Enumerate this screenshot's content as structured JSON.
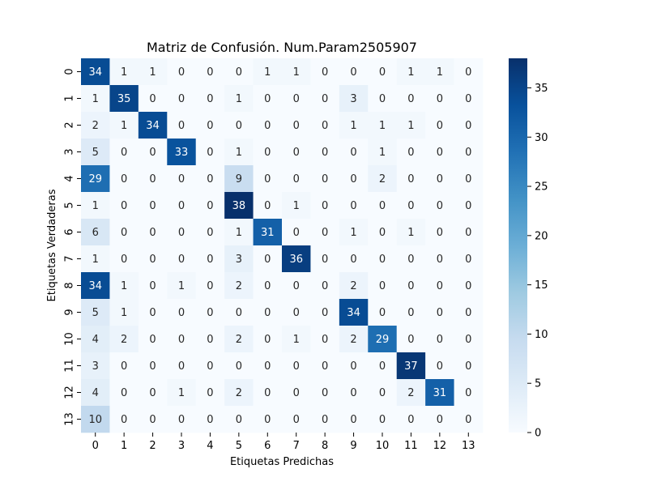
{
  "chart_data": {
    "type": "heatmap",
    "title": "Matriz de Confusión. Num.Param2505907",
    "xlabel": "Etiquetas Predichas",
    "ylabel": "Etiquetas Verdaderas",
    "x_categories": [
      "0",
      "1",
      "2",
      "3",
      "4",
      "5",
      "6",
      "7",
      "8",
      "9",
      "10",
      "11",
      "12",
      "13"
    ],
    "y_categories": [
      "0",
      "1",
      "2",
      "3",
      "4",
      "5",
      "6",
      "7",
      "8",
      "9",
      "10",
      "11",
      "12",
      "13"
    ],
    "values": [
      [
        34,
        1,
        1,
        0,
        0,
        0,
        1,
        1,
        0,
        0,
        0,
        1,
        1,
        0
      ],
      [
        1,
        35,
        0,
        0,
        0,
        1,
        0,
        0,
        0,
        3,
        0,
        0,
        0,
        0
      ],
      [
        2,
        1,
        34,
        0,
        0,
        0,
        0,
        0,
        0,
        1,
        1,
        1,
        0,
        0
      ],
      [
        5,
        0,
        0,
        33,
        0,
        1,
        0,
        0,
        0,
        0,
        1,
        0,
        0,
        0
      ],
      [
        29,
        0,
        0,
        0,
        0,
        9,
        0,
        0,
        0,
        0,
        2,
        0,
        0,
        0
      ],
      [
        1,
        0,
        0,
        0,
        0,
        38,
        0,
        1,
        0,
        0,
        0,
        0,
        0,
        0
      ],
      [
        6,
        0,
        0,
        0,
        0,
        1,
        31,
        0,
        0,
        1,
        0,
        1,
        0,
        0
      ],
      [
        1,
        0,
        0,
        0,
        0,
        3,
        0,
        36,
        0,
        0,
        0,
        0,
        0,
        0
      ],
      [
        34,
        1,
        0,
        1,
        0,
        2,
        0,
        0,
        0,
        2,
        0,
        0,
        0,
        0
      ],
      [
        5,
        1,
        0,
        0,
        0,
        0,
        0,
        0,
        0,
        34,
        0,
        0,
        0,
        0
      ],
      [
        4,
        2,
        0,
        0,
        0,
        2,
        0,
        1,
        0,
        2,
        29,
        0,
        0,
        0
      ],
      [
        3,
        0,
        0,
        0,
        0,
        0,
        0,
        0,
        0,
        0,
        0,
        37,
        0,
        0
      ],
      [
        4,
        0,
        0,
        1,
        0,
        2,
        0,
        0,
        0,
        0,
        0,
        2,
        31,
        0
      ],
      [
        10,
        0,
        0,
        0,
        0,
        0,
        0,
        0,
        0,
        0,
        0,
        0,
        0,
        0
      ]
    ],
    "colormap": "Blues",
    "color_range": [
      0,
      38
    ],
    "colorbar_ticks": [
      0,
      5,
      10,
      15,
      20,
      25,
      30,
      35
    ],
    "colorbar_tick_labels": [
      "0",
      "5",
      "10",
      "15",
      "20",
      "25",
      "30",
      "35"
    ],
    "annotations": true,
    "grid": false
  },
  "colors": {
    "text_dark": "#262626",
    "text_light": "#ffffff",
    "axis": "#000000"
  }
}
